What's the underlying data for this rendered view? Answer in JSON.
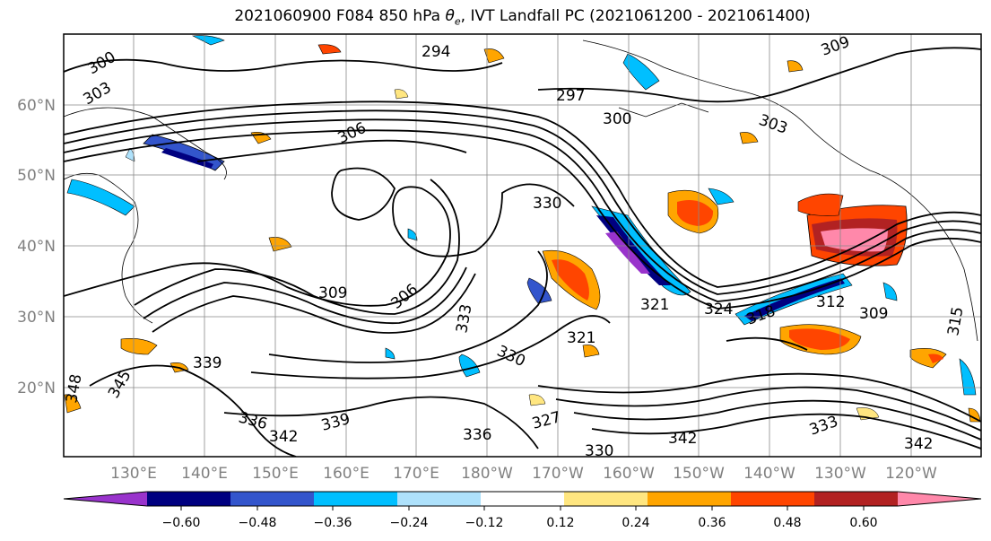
{
  "title": {
    "prefix": "2021060900 F084 850 hPa ",
    "symbol": "θ",
    "subscript": "e",
    "suffix": ", IVT Landfall PC (2021061200 - 2021061400)"
  },
  "map": {
    "lat_labels": [
      "20°N",
      "30°N",
      "40°N",
      "50°N",
      "60°N"
    ],
    "lon_labels": [
      "130°E",
      "140°E",
      "150°E",
      "160°E",
      "170°E",
      "180°W",
      "170°W",
      "160°W",
      "150°W",
      "140°W",
      "130°W",
      "120°W"
    ],
    "contour_labels": [
      "294",
      "297",
      "300",
      "300",
      "303",
      "303",
      "306",
      "306",
      "309",
      "309",
      "309",
      "312",
      "315",
      "318",
      "321",
      "321",
      "324",
      "327",
      "330",
      "330",
      "330",
      "333",
      "333",
      "336",
      "336",
      "339",
      "339",
      "342",
      "342",
      "342",
      "345",
      "348"
    ]
  },
  "colorbar": {
    "colors": [
      "#9933cc",
      "#000080",
      "#3355cc",
      "#00bfff",
      "#aee1fb",
      "#ffffff",
      "#ffe680",
      "#ffa500",
      "#ff4500",
      "#b22222",
      "#ff88aa"
    ],
    "tick_labels": [
      "−0.60",
      "−0.48",
      "−0.36",
      "−0.24",
      "−0.12",
      "0.12",
      "0.24",
      "0.36",
      "0.48",
      "0.60"
    ]
  }
}
